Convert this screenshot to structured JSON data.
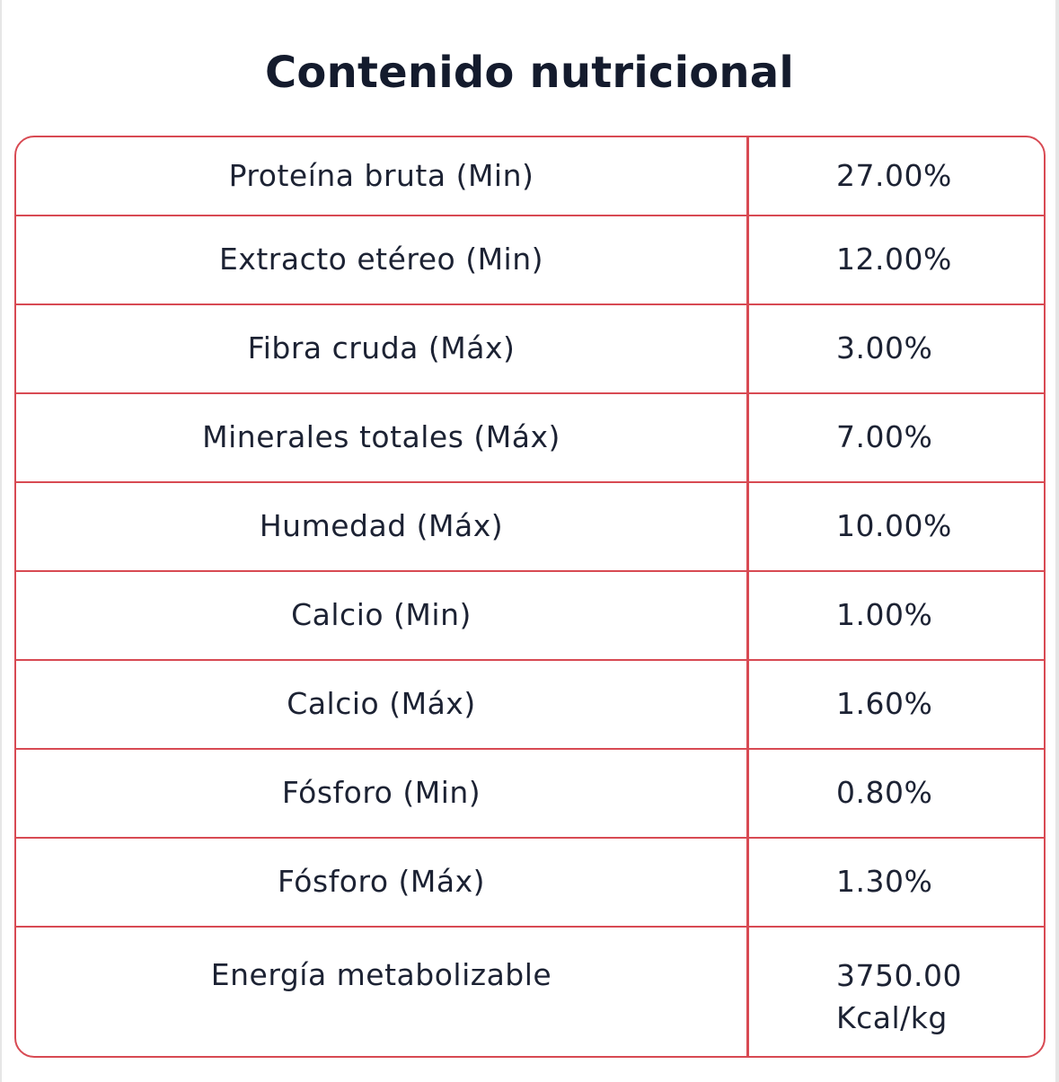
{
  "title": "Contenido nutricional",
  "colors": {
    "border": "#d84a53",
    "text": "#1c2233"
  },
  "rows": [
    {
      "label": "Proteína bruta (Min)",
      "value": "27.00%"
    },
    {
      "label": "Extracto etéreo (Min)",
      "value": "12.00%"
    },
    {
      "label": "Fibra cruda (Máx)",
      "value": "3.00%"
    },
    {
      "label": "Minerales totales (Máx)",
      "value": "7.00%"
    },
    {
      "label": "Humedad (Máx)",
      "value": "10.00%"
    },
    {
      "label": "Calcio (Min)",
      "value": "1.00%"
    },
    {
      "label": "Calcio (Máx)",
      "value": "1.60%"
    },
    {
      "label": "Fósforo (Min)",
      "value": "0.80%"
    },
    {
      "label": "Fósforo (Máx)",
      "value": "1.30%"
    },
    {
      "label": "Energía metabolizable",
      "value": "3750.00",
      "value_line2": "Kcal/kg"
    }
  ]
}
